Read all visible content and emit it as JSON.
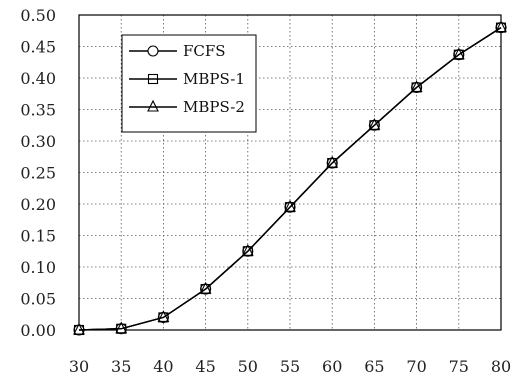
{
  "chart_data": {
    "type": "line",
    "title": "",
    "xlabel": "",
    "ylabel": "",
    "x": [
      30,
      35,
      40,
      45,
      50,
      55,
      60,
      65,
      70,
      75,
      80
    ],
    "x_tick_labels": [
      "30",
      "35",
      "40",
      "45",
      "50",
      "55",
      "60",
      "65",
      "70",
      "75",
      "80"
    ],
    "y_tick_labels": [
      "0.00",
      "0.05",
      "0.10",
      "0.15",
      "0.20",
      "0.25",
      "0.30",
      "0.35",
      "0.40",
      "0.45",
      "0.50"
    ],
    "y_ticks": [
      0.0,
      0.05,
      0.1,
      0.15,
      0.2,
      0.25,
      0.3,
      0.35,
      0.4,
      0.45,
      0.5
    ],
    "xlim": [
      30,
      80
    ],
    "ylim": [
      0.0,
      0.5
    ],
    "grid": true,
    "legend_position": "top-left",
    "series": [
      {
        "name": "FCFS",
        "marker": "circle",
        "values": [
          0.0,
          0.002,
          0.02,
          0.065,
          0.125,
          0.195,
          0.265,
          0.325,
          0.385,
          0.437,
          0.48
        ]
      },
      {
        "name": "MBPS-1",
        "marker": "square",
        "values": [
          0.0,
          0.002,
          0.02,
          0.065,
          0.125,
          0.195,
          0.265,
          0.325,
          0.385,
          0.437,
          0.48
        ]
      },
      {
        "name": "MBPS-2",
        "marker": "triangle",
        "values": [
          0.0,
          0.002,
          0.02,
          0.065,
          0.125,
          0.195,
          0.265,
          0.325,
          0.385,
          0.437,
          0.48
        ]
      }
    ],
    "colors": {
      "line": "#000000",
      "grid": "#555555",
      "axis": "#000000"
    }
  }
}
